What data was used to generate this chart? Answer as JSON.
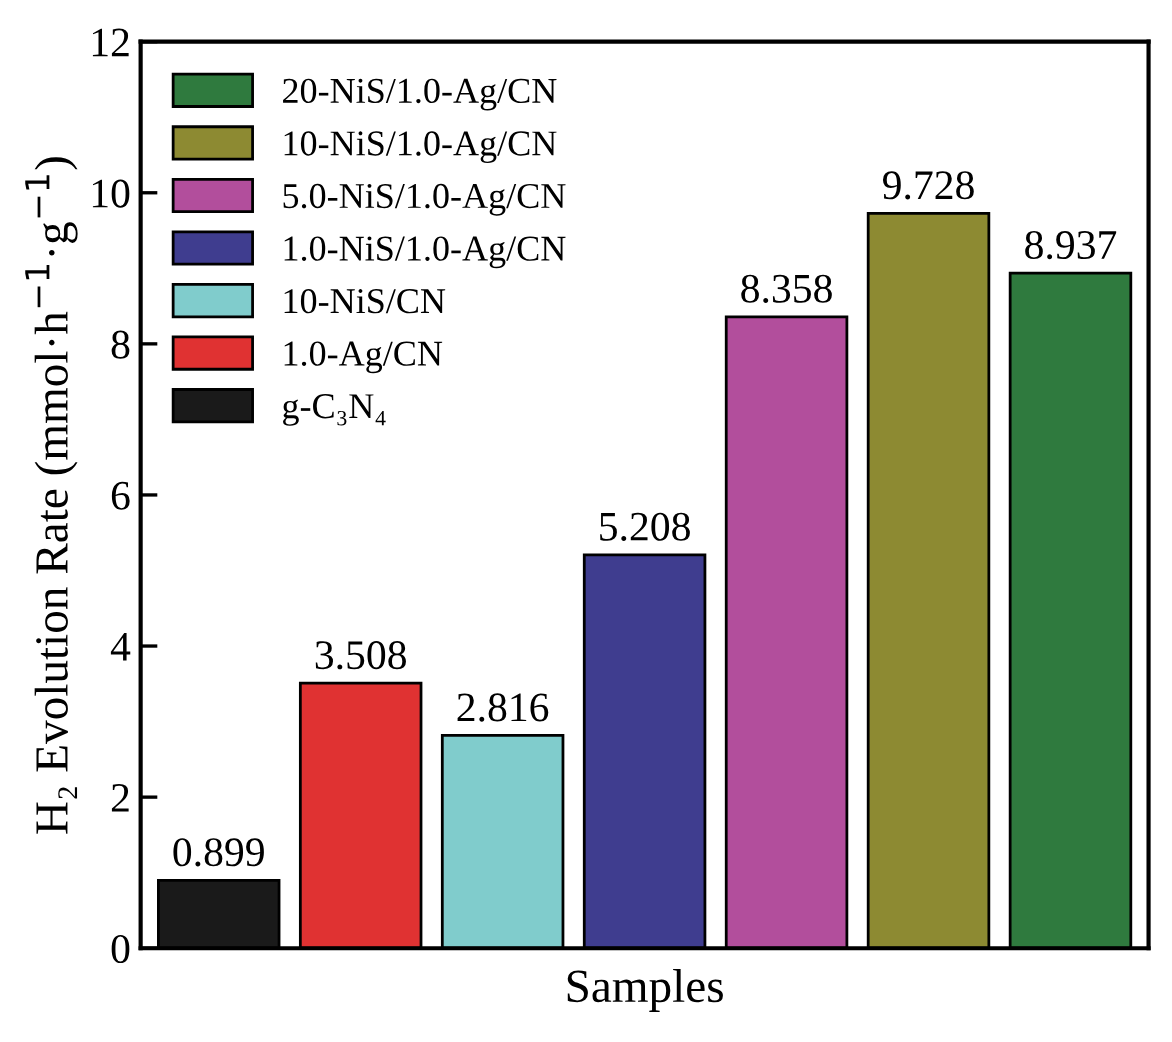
{
  "chart_data": {
    "type": "bar",
    "xlabel": "Samples",
    "ylabel": "H₂ Evolution Rate (mmol·h$^{−1}$·g$^{−1}$)",
    "categories": [
      null,
      null,
      null,
      null,
      null,
      null,
      null
    ],
    "series": [
      {
        "name": "g-C₃N₄",
        "color": "#1a1a1a",
        "values": [
          0.899,
          null,
          null,
          null,
          null,
          null,
          null
        ]
      },
      {
        "name": "1.0-Ag/CN",
        "color": "#e03232",
        "values": [
          null,
          3.508,
          null,
          null,
          null,
          null,
          null
        ]
      },
      {
        "name": "10-NiS/CN",
        "color": "#80cccc",
        "values": [
          null,
          null,
          2.816,
          null,
          null,
          null,
          null
        ]
      },
      {
        "name": "1.0-NiS/1.0-Ag/CN",
        "color": "#3f3d8f",
        "values": [
          null,
          null,
          null,
          5.208,
          null,
          null,
          null
        ]
      },
      {
        "name": "5.0-NiS/1.0-Ag/CN",
        "color": "#b24e9c",
        "values": [
          null,
          null,
          null,
          null,
          8.358,
          null,
          null
        ]
      },
      {
        "name": "10-NiS/1.0-Ag/CN",
        "color": "#8d8a32",
        "values": [
          null,
          null,
          null,
          null,
          null,
          9.728,
          null
        ]
      },
      {
        "name": "20-NiS/1.0-Ag/CN",
        "color": "#2f7a3e",
        "values": [
          null,
          null,
          null,
          null,
          null,
          null,
          8.937
        ]
      }
    ],
    "ylim": [
      0,
      12
    ],
    "yticks": [
      0,
      2,
      4,
      6,
      8,
      10,
      12
    ],
    "data_labels": true,
    "legend": "top left",
    "grid": false
  }
}
